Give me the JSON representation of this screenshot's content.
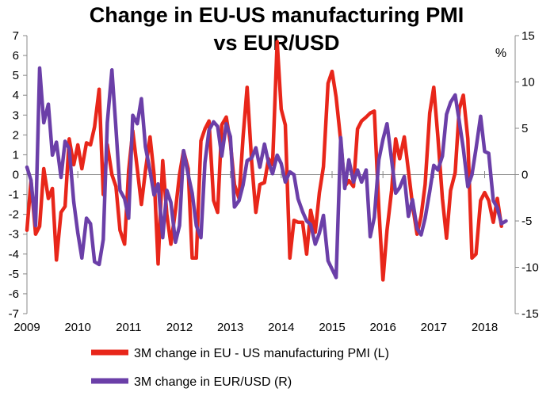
{
  "chart_data": {
    "type": "line",
    "title": "Change in EU-US manufacturing PMI",
    "subtitle": "vs EUR/USD",
    "xlabel": "",
    "ylabel_left": "",
    "ylabel_right": "%",
    "x_start": 2009.0,
    "x_end": 2018.6,
    "x_ticks": [
      2009,
      2010,
      2011,
      2012,
      2013,
      2014,
      2015,
      2016,
      2017,
      2018
    ],
    "x_tick_labels": [
      "2009",
      "2010",
      "2011",
      "2012",
      "2013",
      "2014",
      "2015",
      "2016",
      "2017",
      "2018"
    ],
    "ylim_left": [
      -7,
      7
    ],
    "y_ticks_left": [
      -7,
      -6,
      -5,
      -4,
      -3,
      -2,
      -1,
      0,
      1,
      2,
      3,
      4,
      5,
      6,
      7
    ],
    "ylim_right": [
      -15,
      15
    ],
    "y_ticks_right": [
      -15,
      -10,
      -5,
      0,
      5,
      10,
      15
    ],
    "grid": false,
    "legend_position": "bottom",
    "series": [
      {
        "name": "3M change in EU - US manufacturing PMI (L)",
        "axis": "left",
        "color": "#e8261a",
        "points": [
          [
            2009.0,
            -2.8
          ],
          [
            2009.08,
            -0.3
          ],
          [
            2009.17,
            -3.0
          ],
          [
            2009.25,
            -2.6
          ],
          [
            2009.33,
            0.3
          ],
          [
            2009.42,
            -1.2
          ],
          [
            2009.5,
            -0.7
          ],
          [
            2009.58,
            -4.3
          ],
          [
            2009.67,
            -1.9
          ],
          [
            2009.75,
            -1.6
          ],
          [
            2009.83,
            1.8
          ],
          [
            2009.92,
            0.5
          ],
          [
            2010.0,
            1.5
          ],
          [
            2010.08,
            0.3
          ],
          [
            2010.17,
            1.6
          ],
          [
            2010.25,
            1.5
          ],
          [
            2010.33,
            2.4
          ],
          [
            2010.42,
            4.3
          ],
          [
            2010.5,
            -1.0
          ],
          [
            2010.58,
            1.5
          ],
          [
            2010.67,
            0.0
          ],
          [
            2010.75,
            -0.6
          ],
          [
            2010.83,
            -2.8
          ],
          [
            2010.92,
            -3.5
          ],
          [
            2011.0,
            0.2
          ],
          [
            2011.08,
            2.2
          ],
          [
            2011.17,
            0.3
          ],
          [
            2011.25,
            -1.5
          ],
          [
            2011.33,
            0.2
          ],
          [
            2011.42,
            1.9
          ],
          [
            2011.5,
            0.0
          ],
          [
            2011.58,
            -4.5
          ],
          [
            2011.67,
            0.7
          ],
          [
            2011.75,
            -2.0
          ],
          [
            2011.83,
            -3.5
          ],
          [
            2011.92,
            -1.8
          ],
          [
            2012.0,
            0.0
          ],
          [
            2012.08,
            1.2
          ],
          [
            2012.17,
            0.3
          ],
          [
            2012.25,
            -4.2
          ],
          [
            2012.33,
            -4.2
          ],
          [
            2012.42,
            1.7
          ],
          [
            2012.5,
            2.3
          ],
          [
            2012.58,
            2.7
          ],
          [
            2012.67,
            -1.3
          ],
          [
            2012.75,
            -1.9
          ],
          [
            2012.83,
            2.5
          ],
          [
            2012.92,
            2.9
          ],
          [
            2013.0,
            1.6
          ],
          [
            2013.08,
            -0.5
          ],
          [
            2013.17,
            -1.2
          ],
          [
            2013.25,
            1.9
          ],
          [
            2013.33,
            4.4
          ],
          [
            2013.42,
            0.6
          ],
          [
            2013.5,
            -1.9
          ],
          [
            2013.58,
            -0.5
          ],
          [
            2013.67,
            -0.4
          ],
          [
            2013.75,
            0.8
          ],
          [
            2013.83,
            0.5
          ],
          [
            2013.92,
            6.7
          ],
          [
            2014.0,
            3.3
          ],
          [
            2014.08,
            2.5
          ],
          [
            2014.17,
            -4.2
          ],
          [
            2014.25,
            -2.3
          ],
          [
            2014.33,
            -2.4
          ],
          [
            2014.42,
            -2.4
          ],
          [
            2014.5,
            -4.0
          ],
          [
            2014.58,
            -1.8
          ],
          [
            2014.67,
            -2.9
          ],
          [
            2014.75,
            -0.9
          ],
          [
            2014.83,
            0.4
          ],
          [
            2014.92,
            4.6
          ],
          [
            2015.0,
            5.2
          ],
          [
            2015.08,
            3.9
          ],
          [
            2015.17,
            1.7
          ],
          [
            2015.25,
            -0.6
          ],
          [
            2015.33,
            -0.3
          ],
          [
            2015.42,
            -0.6
          ],
          [
            2015.5,
            2.3
          ],
          [
            2015.58,
            2.7
          ],
          [
            2015.67,
            2.9
          ],
          [
            2015.75,
            3.1
          ],
          [
            2015.83,
            3.2
          ],
          [
            2015.92,
            -1.7
          ],
          [
            2016.0,
            -5.3
          ],
          [
            2016.08,
            -2.8
          ],
          [
            2016.17,
            -0.8
          ],
          [
            2016.25,
            1.8
          ],
          [
            2016.33,
            0.8
          ],
          [
            2016.42,
            1.9
          ],
          [
            2016.5,
            0.2
          ],
          [
            2016.58,
            -1.5
          ],
          [
            2016.67,
            -3.0
          ],
          [
            2016.75,
            -2.1
          ],
          [
            2016.83,
            -0.5
          ],
          [
            2016.92,
            3.1
          ],
          [
            2017.0,
            4.4
          ],
          [
            2017.08,
            1.9
          ],
          [
            2017.17,
            -1.2
          ],
          [
            2017.25,
            -3.2
          ],
          [
            2017.33,
            -0.8
          ],
          [
            2017.42,
            0.1
          ],
          [
            2017.5,
            3.3
          ],
          [
            2017.58,
            4.0
          ],
          [
            2017.67,
            1.8
          ],
          [
            2017.75,
            -4.2
          ],
          [
            2017.83,
            -4.0
          ],
          [
            2017.92,
            -1.3
          ],
          [
            2018.0,
            -0.9
          ],
          [
            2018.08,
            -1.3
          ],
          [
            2018.17,
            -2.4
          ],
          [
            2018.25,
            -1.2
          ],
          [
            2018.33,
            -2.6
          ]
        ]
      },
      {
        "name": "3M change in EUR/USD (R)",
        "axis": "right",
        "color": "#6b3fa8",
        "points": [
          [
            2009.0,
            0.8
          ],
          [
            2009.08,
            -0.6
          ],
          [
            2009.17,
            -5.5
          ],
          [
            2009.25,
            11.5
          ],
          [
            2009.33,
            5.6
          ],
          [
            2009.42,
            7.6
          ],
          [
            2009.5,
            2.1
          ],
          [
            2009.58,
            3.5
          ],
          [
            2009.67,
            -0.3
          ],
          [
            2009.75,
            3.6
          ],
          [
            2009.83,
            2.8
          ],
          [
            2009.92,
            -2.9
          ],
          [
            2010.0,
            -6.3
          ],
          [
            2010.08,
            -9.0
          ],
          [
            2010.17,
            -4.7
          ],
          [
            2010.25,
            -5.3
          ],
          [
            2010.33,
            -9.4
          ],
          [
            2010.42,
            -9.7
          ],
          [
            2010.5,
            -7.0
          ],
          [
            2010.58,
            5.6
          ],
          [
            2010.67,
            11.3
          ],
          [
            2010.75,
            5.0
          ],
          [
            2010.83,
            -1.7
          ],
          [
            2010.92,
            -2.6
          ],
          [
            2011.0,
            -4.7
          ],
          [
            2011.08,
            6.4
          ],
          [
            2011.17,
            5.5
          ],
          [
            2011.25,
            8.2
          ],
          [
            2011.33,
            3.0
          ],
          [
            2011.42,
            0.4
          ],
          [
            2011.5,
            -2.2
          ],
          [
            2011.58,
            -1.0
          ],
          [
            2011.67,
            -6.8
          ],
          [
            2011.75,
            -1.7
          ],
          [
            2011.83,
            -3.0
          ],
          [
            2011.92,
            -7.3
          ],
          [
            2012.0,
            -5.5
          ],
          [
            2012.08,
            2.6
          ],
          [
            2012.17,
            0.0
          ],
          [
            2012.25,
            -2.0
          ],
          [
            2012.33,
            -5.5
          ],
          [
            2012.42,
            -6.8
          ],
          [
            2012.5,
            1.3
          ],
          [
            2012.58,
            4.8
          ],
          [
            2012.67,
            5.7
          ],
          [
            2012.75,
            5.2
          ],
          [
            2012.83,
            2.0
          ],
          [
            2012.92,
            5.5
          ],
          [
            2013.0,
            4.1
          ],
          [
            2013.08,
            -3.5
          ],
          [
            2013.17,
            -2.8
          ],
          [
            2013.25,
            -1.1
          ],
          [
            2013.33,
            1.5
          ],
          [
            2013.42,
            1.8
          ],
          [
            2013.5,
            2.9
          ],
          [
            2013.58,
            0.8
          ],
          [
            2013.67,
            3.3
          ],
          [
            2013.75,
            1.3
          ],
          [
            2013.83,
            0.1
          ],
          [
            2013.92,
            2.1
          ],
          [
            2014.0,
            1.2
          ],
          [
            2014.08,
            -0.8
          ],
          [
            2014.17,
            0.3
          ],
          [
            2014.25,
            0.0
          ],
          [
            2014.33,
            -2.6
          ],
          [
            2014.42,
            -4.0
          ],
          [
            2014.5,
            -5.0
          ],
          [
            2014.58,
            -5.4
          ],
          [
            2014.67,
            -7.5
          ],
          [
            2014.75,
            -6.3
          ],
          [
            2014.83,
            -4.4
          ],
          [
            2014.92,
            -9.3
          ],
          [
            2015.0,
            -10.2
          ],
          [
            2015.08,
            -11.1
          ],
          [
            2015.17,
            4.0
          ],
          [
            2015.25,
            -1.5
          ],
          [
            2015.33,
            1.6
          ],
          [
            2015.42,
            -0.8
          ],
          [
            2015.5,
            0.5
          ],
          [
            2015.58,
            -0.8
          ],
          [
            2015.67,
            0.5
          ],
          [
            2015.75,
            -6.7
          ],
          [
            2015.83,
            -4.6
          ],
          [
            2015.92,
            1.6
          ],
          [
            2016.0,
            3.8
          ],
          [
            2016.08,
            5.5
          ],
          [
            2016.17,
            1.6
          ],
          [
            2016.25,
            -2.0
          ],
          [
            2016.33,
            -1.4
          ],
          [
            2016.42,
            -0.2
          ],
          [
            2016.5,
            -4.5
          ],
          [
            2016.58,
            -2.7
          ],
          [
            2016.67,
            -5.8
          ],
          [
            2016.75,
            -6.5
          ],
          [
            2016.83,
            -4.7
          ],
          [
            2016.92,
            -1.8
          ],
          [
            2017.0,
            1.0
          ],
          [
            2017.08,
            0.5
          ],
          [
            2017.17,
            2.0
          ],
          [
            2017.25,
            6.5
          ],
          [
            2017.33,
            7.8
          ],
          [
            2017.42,
            8.6
          ],
          [
            2017.5,
            5.8
          ],
          [
            2017.58,
            2.8
          ],
          [
            2017.67,
            -1.3
          ],
          [
            2017.75,
            0.0
          ],
          [
            2017.83,
            2.8
          ],
          [
            2017.92,
            6.3
          ],
          [
            2018.0,
            2.5
          ],
          [
            2018.08,
            2.3
          ],
          [
            2018.17,
            -2.8
          ],
          [
            2018.25,
            -3.6
          ],
          [
            2018.33,
            -5.3
          ],
          [
            2018.42,
            -5.0
          ]
        ]
      }
    ]
  }
}
